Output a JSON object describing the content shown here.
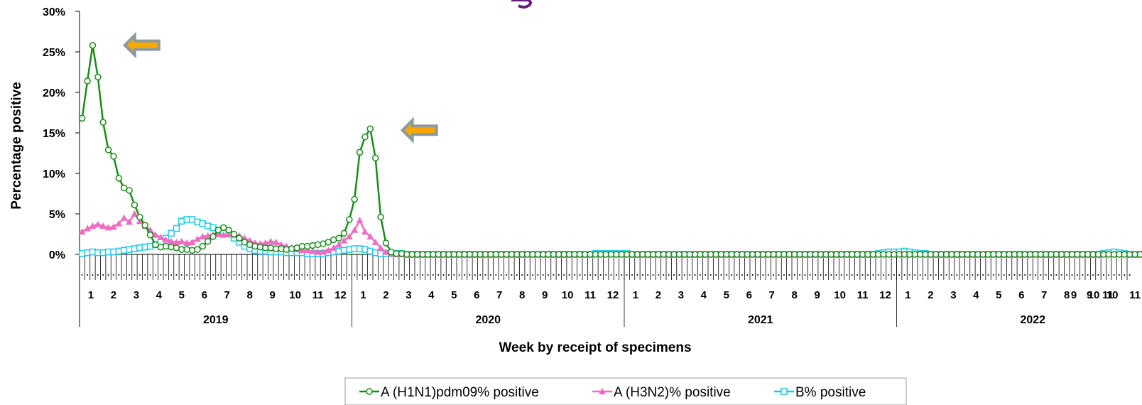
{
  "chart_data": {
    "type": "line",
    "ylabel": "Percentage  positive",
    "xlabel": "Week by receipt of specimens",
    "ylim": [
      0,
      30
    ],
    "y_ticks": [
      "0%",
      "5%",
      "10%",
      "15%",
      "20%",
      "25%",
      "30%"
    ],
    "y_tick_values": [
      0,
      5,
      10,
      15,
      20,
      25,
      30
    ],
    "years": [
      "2019",
      "2020",
      "2021",
      "2022"
    ],
    "month_labels": [
      "1",
      "2",
      "3",
      "4",
      "5",
      "6",
      "7",
      "8",
      "9",
      "10",
      "11",
      "12"
    ],
    "weeks_per_year": 52,
    "grid": false,
    "legend_position": "bottom",
    "annotations": [
      {
        "type": "arrow",
        "points_at_week": 3,
        "value": 26,
        "color": "#f5a800"
      },
      {
        "type": "arrow",
        "points_at_week": 56,
        "value": 15.5,
        "color": "#f5a800"
      }
    ],
    "series": [
      {
        "name": "A (H1N1)pdm09% positive",
        "color": "#1a8c1a",
        "marker": "circle",
        "values": [
          16.8,
          21.4,
          25.8,
          21.9,
          16.3,
          12.9,
          12.1,
          9.4,
          8.2,
          7.9,
          6.1,
          4.6,
          3.6,
          2.4,
          1.2,
          0.9,
          1.0,
          0.9,
          0.8,
          0.6,
          0.6,
          0.5,
          0.6,
          1.0,
          1.6,
          2.2,
          3.0,
          3.3,
          3.0,
          2.5,
          2.0,
          1.5,
          1.2,
          1.0,
          0.9,
          0.8,
          0.8,
          0.7,
          0.7,
          0.6,
          0.7,
          0.8,
          1.0,
          1.0,
          1.1,
          1.2,
          1.3,
          1.5,
          1.8,
          2.0,
          2.6,
          4.3,
          6.8,
          12.6,
          14.5,
          15.5,
          11.9,
          4.6,
          1.4,
          0.3,
          0.1,
          0.1,
          0,
          0,
          0,
          0,
          0,
          0,
          0,
          0,
          0,
          0,
          0,
          0,
          0,
          0,
          0,
          0,
          0,
          0,
          0,
          0,
          0,
          0,
          0,
          0,
          0,
          0,
          0,
          0,
          0,
          0,
          0,
          0,
          0,
          0,
          0,
          0,
          0,
          0,
          0,
          0,
          0,
          0,
          0,
          0,
          0,
          0,
          0,
          0,
          0,
          0,
          0,
          0,
          0,
          0,
          0,
          0,
          0,
          0,
          0,
          0,
          0,
          0,
          0,
          0,
          0,
          0,
          0,
          0,
          0,
          0,
          0,
          0,
          0,
          0,
          0,
          0,
          0,
          0,
          0,
          0,
          0,
          0,
          0,
          0,
          0,
          0,
          0,
          0,
          0,
          0,
          0,
          0,
          0,
          0,
          0,
          0,
          0,
          0,
          0,
          0,
          0,
          0,
          0,
          0,
          0,
          0,
          0,
          0,
          0,
          0,
          0,
          0,
          0,
          0,
          0,
          0,
          0,
          0,
          0,
          0,
          0,
          0,
          0,
          0,
          0,
          0,
          0,
          0,
          0,
          0,
          0,
          0,
          0,
          0,
          0,
          0,
          0,
          0,
          0,
          0,
          0,
          0,
          0,
          0,
          0,
          0,
          0,
          0,
          0,
          0,
          0,
          0,
          0,
          0
        ]
      },
      {
        "name": "A (H3N2)% positive",
        "color": "#f06cc0",
        "marker": "triangle",
        "values": [
          2.8,
          3.2,
          3.5,
          3.7,
          3.5,
          3.3,
          3.4,
          3.8,
          4.5,
          4.0,
          5.0,
          4.1,
          3.5,
          3.0,
          2.4,
          2.1,
          1.8,
          1.6,
          1.5,
          1.6,
          1.4,
          1.5,
          1.9,
          2.2,
          2.3,
          2.4,
          2.5,
          2.4,
          2.5,
          2.4,
          2.3,
          2.0,
          1.7,
          1.4,
          1.3,
          1.4,
          1.6,
          1.5,
          1.2,
          1.0,
          0.8,
          0.6,
          0.5,
          0.5,
          0.4,
          0.3,
          0.3,
          0.5,
          0.8,
          1.2,
          1.7,
          2.2,
          3.0,
          4.2,
          2.8,
          2.2,
          1.5,
          0.8,
          0.3,
          0.1,
          0,
          0,
          0,
          0,
          0,
          0,
          0,
          0,
          0,
          0,
          0,
          0,
          0,
          0,
          0,
          0,
          0,
          0,
          0,
          0,
          0,
          0,
          0,
          0,
          0,
          0,
          0,
          0,
          0,
          0,
          0,
          0,
          0,
          0,
          0,
          0,
          0,
          0,
          0,
          0,
          0,
          0,
          0,
          0,
          0,
          0,
          0,
          0,
          0,
          0,
          0,
          0,
          0,
          0,
          0,
          0,
          0,
          0,
          0,
          0,
          0,
          0,
          0,
          0,
          0,
          0,
          0,
          0,
          0,
          0,
          0,
          0,
          0,
          0,
          0,
          0,
          0,
          0,
          0,
          0,
          0,
          0,
          0,
          0,
          0,
          0,
          0,
          0,
          0,
          0,
          0,
          0,
          0,
          0,
          0,
          0,
          0,
          0,
          0,
          0,
          0,
          0,
          0,
          0,
          0,
          0,
          0,
          0,
          0,
          0,
          0,
          0,
          0,
          0,
          0,
          0,
          0,
          0,
          0,
          0,
          0,
          0,
          0,
          0,
          0,
          0,
          0,
          0,
          0,
          0,
          0,
          0,
          0,
          0,
          0,
          0,
          0,
          0,
          0,
          0,
          0,
          0,
          0,
          0,
          0,
          0,
          0,
          0,
          0,
          0,
          0,
          0,
          0,
          0,
          0,
          0,
          0,
          0,
          0,
          0
        ]
      },
      {
        "name": "B% positive",
        "color": "#1ec8e8",
        "marker": "square",
        "values": [
          0.1,
          0.2,
          0.3,
          0.2,
          0.2,
          0.3,
          0.3,
          0.4,
          0.5,
          0.6,
          0.7,
          0.8,
          0.9,
          1.0,
          1.2,
          1.5,
          2.0,
          2.6,
          3.2,
          4.1,
          4.3,
          4.3,
          4.0,
          3.8,
          3.5,
          3.3,
          3.0,
          2.8,
          2.5,
          2.0,
          1.5,
          1.0,
          0.7,
          0.5,
          0.4,
          0.4,
          0.3,
          0.3,
          0.3,
          0.2,
          0.2,
          0.2,
          0.2,
          0.1,
          0.1,
          0.1,
          0.1,
          0.2,
          0.3,
          0.4,
          0.5,
          0.6,
          0.7,
          0.7,
          0.6,
          0.4,
          0.2,
          0.1,
          0.1,
          0.1,
          0.1,
          0.1,
          0,
          0,
          0,
          0,
          0,
          0,
          0,
          0,
          0,
          0,
          0,
          0,
          0,
          0,
          0,
          0,
          0,
          0,
          0,
          0,
          0,
          0,
          0,
          0,
          0,
          0,
          0,
          0,
          0,
          0,
          0,
          0,
          0,
          0,
          0,
          0,
          0.1,
          0.1,
          0.1,
          0.1,
          0.1,
          0.1,
          0.1,
          0,
          0,
          0,
          0,
          0,
          0,
          0,
          0,
          0,
          0,
          0,
          0,
          0,
          0,
          0,
          0,
          0,
          0,
          0,
          0,
          0,
          0,
          0,
          0,
          0,
          0,
          0,
          0,
          0,
          0,
          0,
          0,
          0,
          0,
          0,
          0,
          0,
          0,
          0,
          0,
          0,
          0,
          0,
          0,
          0,
          0,
          0,
          0.1,
          0.2,
          0.3,
          0.3,
          0.3,
          0.4,
          0.3,
          0.2,
          0.1,
          0.1,
          0,
          0,
          0,
          0,
          0,
          0,
          0,
          0,
          0,
          0,
          0,
          0,
          0,
          0,
          0,
          0,
          0,
          0,
          0,
          0,
          0,
          0,
          0,
          0,
          0,
          0,
          0,
          0,
          0,
          0,
          0,
          0,
          0,
          0.1,
          0.2,
          0.3,
          0.2,
          0.1,
          0,
          0,
          0,
          0,
          0,
          0,
          0,
          0,
          0,
          0,
          0,
          0,
          0,
          0
        ]
      }
    ]
  }
}
